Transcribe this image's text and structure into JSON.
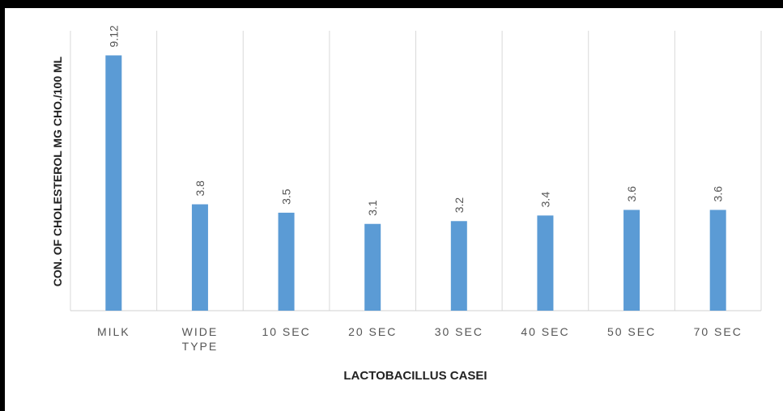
{
  "chart_data": {
    "type": "bar",
    "categories": [
      [
        "MILK"
      ],
      [
        "WIDE",
        "TYPE"
      ],
      [
        "10 SEC"
      ],
      [
        "20 SEC"
      ],
      [
        "30 SEC"
      ],
      [
        "40 SEC"
      ],
      [
        "50 SEC"
      ],
      [
        "70 SEC"
      ]
    ],
    "values": [
      9.12,
      3.8,
      3.5,
      3.1,
      3.2,
      3.4,
      3.6,
      3.6
    ],
    "value_labels": [
      "9.12",
      "3.8",
      "3.5",
      "3.1",
      "3.2",
      "3.4",
      "3.6",
      "3.6"
    ],
    "xlabel": "LACTOBACILLUS CASEI",
    "ylabel": "CON. OF CHOLESTEROL  MG CHO./100 ML",
    "ylim": [
      0,
      10
    ],
    "grid": "vertical category separators",
    "bar_color": "#5B9BD5",
    "legend": "none"
  }
}
